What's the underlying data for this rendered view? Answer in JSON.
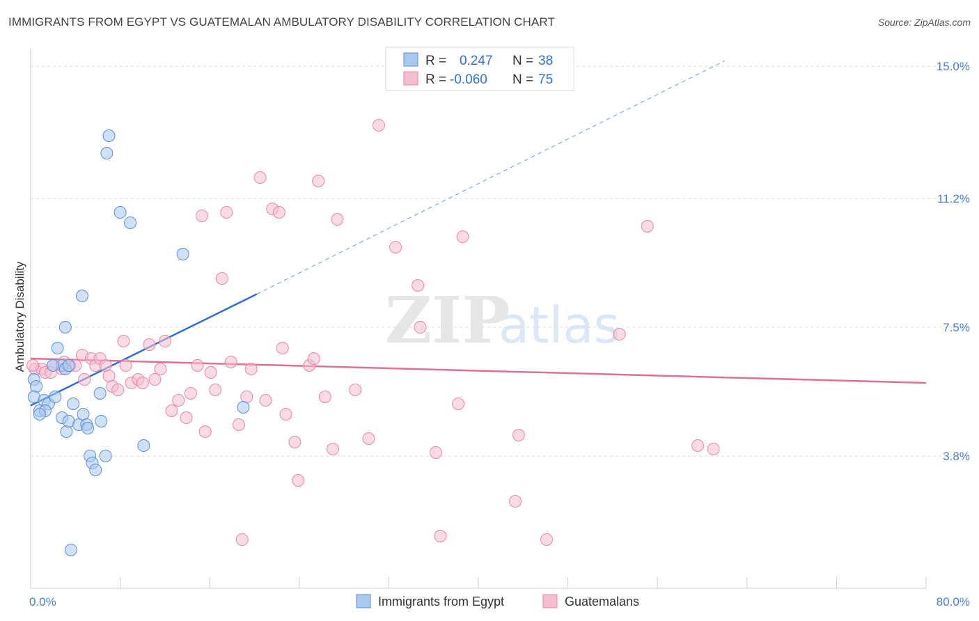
{
  "header": {
    "title": "IMMIGRANTS FROM EGYPT VS GUATEMALAN AMBULATORY DISABILITY CORRELATION CHART",
    "source": "Source: ZipAtlas.com"
  },
  "watermark": {
    "zip": "ZIP",
    "atlas": "atlas"
  },
  "stats_legend": {
    "rows": [
      {
        "r_label": "R =",
        "r_value": "0.247",
        "n_label": "N =",
        "n_value": "38"
      },
      {
        "r_label": "R =",
        "r_value": "-0.060",
        "n_label": "N =",
        "n_value": "75"
      }
    ]
  },
  "bottom_legend": {
    "items": [
      "Immigrants from Egypt",
      "Guatemalans"
    ]
  },
  "colors": {
    "egypt_fill": "#a9c8f0",
    "egypt_stroke": "#5b8fd6",
    "egypt_line": "#2f6fd2",
    "guat_fill": "#f6bccf",
    "guat_stroke": "#e588a8",
    "guat_line": "#e0709a",
    "tick_text": "#4a7fd0",
    "grid": "#dddddd"
  },
  "chart_data": {
    "type": "scatter",
    "title": "IMMIGRANTS FROM EGYPT VS GUATEMALAN AMBULATORY DISABILITY CORRELATION CHART",
    "xlabel": "",
    "ylabel": "Ambulatory Disability",
    "xlim": [
      0,
      80
    ],
    "ylim": [
      0,
      15.5
    ],
    "x_tick_labels": [
      "0.0%",
      "80.0%"
    ],
    "y_ticks": [
      3.8,
      7.5,
      11.2,
      15.0
    ],
    "y_tick_labels": [
      "3.8%",
      "7.5%",
      "11.2%",
      "15.0%"
    ],
    "grid": true,
    "legend_position": "top-center",
    "series": [
      {
        "name": "Immigrants from Egypt",
        "r": 0.247,
        "n": 38,
        "trend": {
          "x": [
            0,
            20.2
          ],
          "y": [
            5.25,
            8.45
          ]
        },
        "trend_dashed_extension": {
          "x": [
            20.2,
            62
          ],
          "y": [
            8.45,
            15.15
          ]
        },
        "points": [
          [
            0.3,
            6.0
          ],
          [
            0.5,
            5.8
          ],
          [
            0.3,
            5.5
          ],
          [
            0.8,
            5.1
          ],
          [
            1.2,
            5.4
          ],
          [
            1.6,
            5.3
          ],
          [
            1.3,
            5.1
          ],
          [
            2.2,
            5.5
          ],
          [
            2.4,
            6.9
          ],
          [
            2.8,
            6.4
          ],
          [
            2.8,
            4.9
          ],
          [
            3.1,
            7.5
          ],
          [
            3.2,
            4.5
          ],
          [
            3.4,
            4.8
          ],
          [
            3.6,
            1.1
          ],
          [
            3.8,
            5.3
          ],
          [
            4.3,
            4.7
          ],
          [
            4.6,
            8.4
          ],
          [
            4.7,
            5.0
          ],
          [
            5.0,
            4.7
          ],
          [
            5.1,
            4.6
          ],
          [
            5.3,
            3.8
          ],
          [
            5.5,
            3.6
          ],
          [
            5.8,
            3.4
          ],
          [
            6.2,
            5.6
          ],
          [
            6.3,
            4.8
          ],
          [
            6.7,
            3.8
          ],
          [
            6.8,
            12.5
          ],
          [
            7.0,
            13.0
          ],
          [
            8.0,
            10.8
          ],
          [
            8.9,
            10.5
          ],
          [
            10.1,
            4.1
          ],
          [
            13.6,
            9.6
          ],
          [
            19.0,
            5.2
          ],
          [
            3.1,
            6.3
          ],
          [
            3.4,
            6.4
          ],
          [
            0.8,
            5.0
          ],
          [
            2.0,
            6.4
          ]
        ]
      },
      {
        "name": "Guatemalans",
        "r": -0.06,
        "n": 75,
        "trend": {
          "x": [
            0,
            80
          ],
          "y": [
            6.6,
            5.9
          ]
        },
        "points": [
          [
            0.4,
            6.3
          ],
          [
            1.0,
            6.3
          ],
          [
            1.3,
            6.2
          ],
          [
            2.0,
            6.4
          ],
          [
            2.8,
            6.3
          ],
          [
            3.5,
            6.4
          ],
          [
            4.0,
            6.4
          ],
          [
            4.6,
            6.7
          ],
          [
            4.8,
            6.0
          ],
          [
            5.4,
            6.6
          ],
          [
            5.8,
            6.4
          ],
          [
            6.2,
            6.6
          ],
          [
            6.7,
            6.4
          ],
          [
            7.0,
            6.1
          ],
          [
            7.3,
            5.8
          ],
          [
            7.8,
            5.7
          ],
          [
            8.3,
            7.1
          ],
          [
            8.5,
            6.4
          ],
          [
            9.0,
            5.9
          ],
          [
            9.6,
            6.0
          ],
          [
            10.0,
            5.9
          ],
          [
            10.6,
            7.0
          ],
          [
            11.1,
            6.0
          ],
          [
            11.6,
            6.3
          ],
          [
            12.0,
            7.1
          ],
          [
            12.6,
            5.1
          ],
          [
            13.2,
            5.4
          ],
          [
            13.9,
            4.9
          ],
          [
            14.3,
            5.6
          ],
          [
            14.9,
            6.4
          ],
          [
            15.3,
            10.7
          ],
          [
            15.6,
            4.5
          ],
          [
            16.1,
            6.2
          ],
          [
            16.5,
            5.7
          ],
          [
            17.1,
            8.9
          ],
          [
            17.5,
            10.8
          ],
          [
            17.9,
            6.5
          ],
          [
            18.6,
            4.7
          ],
          [
            18.9,
            1.4
          ],
          [
            19.3,
            5.5
          ],
          [
            19.7,
            6.3
          ],
          [
            20.5,
            11.8
          ],
          [
            21.0,
            5.4
          ],
          [
            21.6,
            10.9
          ],
          [
            22.2,
            10.8
          ],
          [
            22.5,
            6.9
          ],
          [
            22.8,
            5.0
          ],
          [
            23.6,
            4.2
          ],
          [
            23.9,
            3.1
          ],
          [
            24.9,
            6.4
          ],
          [
            25.3,
            6.6
          ],
          [
            25.7,
            11.7
          ],
          [
            26.3,
            5.5
          ],
          [
            27.0,
            4.0
          ],
          [
            27.4,
            10.6
          ],
          [
            29.0,
            5.7
          ],
          [
            30.2,
            4.3
          ],
          [
            31.1,
            13.3
          ],
          [
            32.6,
            9.8
          ],
          [
            34.6,
            8.7
          ],
          [
            34.8,
            7.5
          ],
          [
            36.2,
            3.9
          ],
          [
            36.6,
            1.5
          ],
          [
            38.2,
            5.3
          ],
          [
            38.6,
            10.1
          ],
          [
            43.3,
            2.5
          ],
          [
            43.6,
            4.4
          ],
          [
            46.1,
            1.4
          ],
          [
            52.6,
            7.3
          ],
          [
            55.1,
            10.4
          ],
          [
            59.6,
            4.1
          ],
          [
            61.0,
            4.0
          ],
          [
            1.8,
            6.2
          ],
          [
            3.0,
            6.5
          ],
          [
            0.2,
            6.4
          ]
        ]
      }
    ]
  }
}
